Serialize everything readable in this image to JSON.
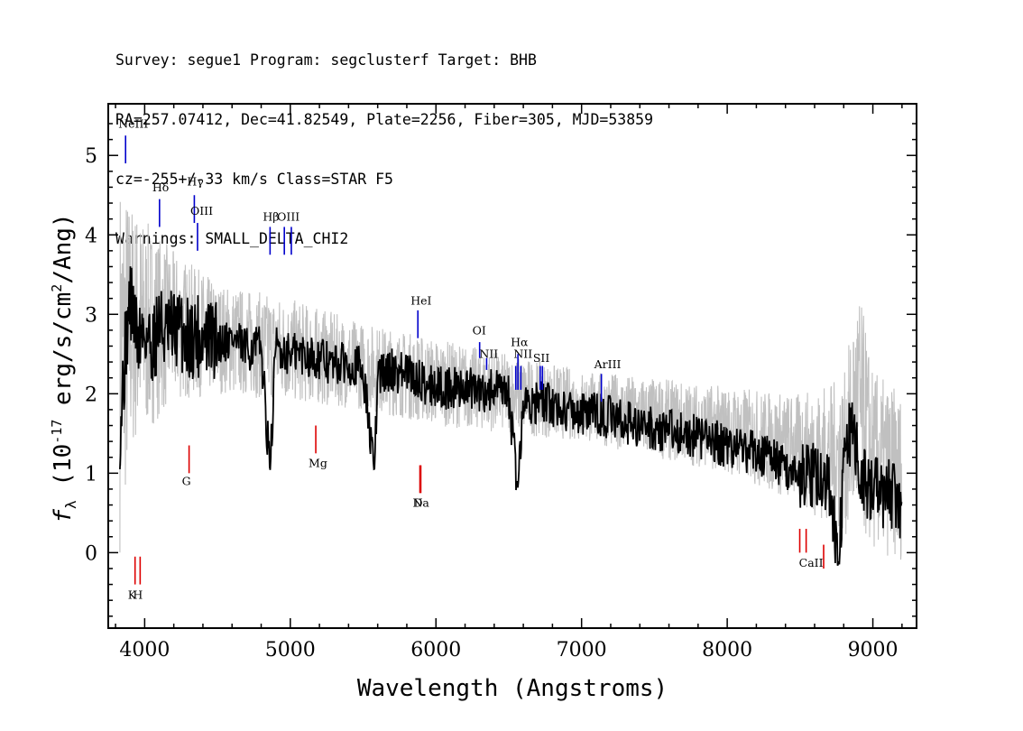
{
  "header": {
    "line1": "Survey: segue1 Program: segclusterf Target: BHB",
    "line2": "RA=257.07412, Dec=41.82549, Plate=2256, Fiber=305, MJD=53859",
    "line3": "cz=-255+/-33 km/s Class=STAR F5",
    "line4": "Warnings: SMALL_DELTA_CHI2"
  },
  "chart_data": {
    "type": "line",
    "xlabel": "Wavelength (Angstroms)",
    "ylabel": "f_λ (10^-17 erg/s/cm^2/Ang)",
    "xlim": [
      3750,
      9300
    ],
    "ylim": [
      -0.95,
      5.65
    ],
    "x_ticks": [
      4000,
      5000,
      6000,
      7000,
      8000,
      9000
    ],
    "y_ticks": [
      0,
      1,
      2,
      3,
      4,
      5
    ],
    "colors": {
      "smoothed": "#000000",
      "raw": "#c0c0c0",
      "emission": "#0000cc",
      "absorption": "#dd0000"
    },
    "series": [
      {
        "name": "",
        "role": "smoothed",
        "x": [
          3830,
          3870,
          3900,
          3950,
          4000,
          4050,
          4100,
          4150,
          4200,
          4250,
          4300,
          4350,
          4400,
          4500,
          4600,
          4700,
          4800,
          4861,
          4900,
          5000,
          5100,
          5200,
          5300,
          5400,
          5500,
          5577,
          5600,
          5700,
          5800,
          5900,
          6000,
          6100,
          6200,
          6300,
          6400,
          6500,
          6563,
          6600,
          6700,
          6800,
          6900,
          7000,
          7100,
          7200,
          7300,
          7400,
          7500,
          7600,
          7700,
          7800,
          7900,
          8000,
          8100,
          8200,
          8300,
          8400,
          8500,
          8600,
          8700,
          8760,
          8800,
          8850,
          8900,
          8950,
          9000,
          9050,
          9100,
          9150,
          9200
        ],
        "y": [
          1.6,
          2.6,
          3.2,
          2.7,
          2.8,
          2.6,
          2.9,
          2.7,
          2.8,
          2.8,
          2.7,
          2.75,
          2.7,
          2.65,
          2.7,
          2.55,
          2.6,
          1.0,
          2.6,
          2.5,
          2.5,
          2.45,
          2.35,
          2.4,
          2.3,
          1.0,
          2.25,
          2.3,
          2.25,
          2.15,
          2.1,
          2.05,
          2.1,
          2.0,
          2.05,
          1.95,
          0.8,
          1.9,
          1.9,
          1.85,
          1.8,
          1.75,
          1.75,
          1.7,
          1.65,
          1.6,
          1.55,
          1.55,
          1.5,
          1.45,
          1.4,
          1.35,
          1.3,
          1.25,
          1.2,
          1.05,
          1.0,
          0.95,
          0.9,
          -0.2,
          1.0,
          1.6,
          1.1,
          0.9,
          0.8,
          0.75,
          0.75,
          0.65,
          0.4
        ]
      },
      {
        "name": "",
        "role": "raw-noise-envelope",
        "x": [
          3830,
          3900,
          4000,
          4200,
          4500,
          5000,
          5500,
          6000,
          6500,
          7000,
          7500,
          8000,
          8500,
          8800,
          8900,
          9000,
          9200
        ],
        "y_low": [
          0.0,
          1.2,
          1.5,
          1.9,
          2.0,
          1.9,
          1.8,
          1.6,
          1.5,
          1.4,
          1.2,
          1.0,
          0.6,
          0.2,
          0.3,
          0.0,
          -0.1
        ],
        "y_high": [
          4.8,
          4.5,
          4.2,
          3.8,
          3.4,
          3.2,
          2.9,
          2.7,
          2.5,
          2.3,
          2.2,
          2.1,
          2.0,
          2.2,
          3.4,
          2.3,
          2.0
        ]
      }
    ],
    "emission_lines": [
      {
        "label": "NeIII",
        "x": 3869,
        "y0": 4.9,
        "y1": 5.25,
        "label_y": 5.35
      },
      {
        "label": "Hδ",
        "x": 4102,
        "y0": 4.1,
        "y1": 4.45,
        "label_y": 4.55
      },
      {
        "label": "Hγ",
        "x": 4341,
        "y0": 4.15,
        "y1": 4.5,
        "label_y": 4.62
      },
      {
        "label": "OIII",
        "x": 4363,
        "y0": 3.8,
        "y1": 4.15,
        "label_y": 4.25
      },
      {
        "label": "Hβ",
        "x": 4861,
        "y0": 3.75,
        "y1": 4.1,
        "label_y": 4.18
      },
      {
        "label": "OIII",
        "x": 4959,
        "y0": 3.75,
        "y1": 4.1,
        "label_y": 4.18
      },
      {
        "label": "",
        "x": 5007,
        "y0": 3.75,
        "y1": 4.1,
        "label_y": 4.18
      },
      {
        "label": "HeI",
        "x": 5876,
        "y0": 2.7,
        "y1": 3.05,
        "label_y": 3.12
      },
      {
        "label": "OI",
        "x": 6300,
        "y0": 2.45,
        "y1": 2.65,
        "label_y": 2.75
      },
      {
        "label": "NII",
        "x": 6348,
        "y0": 2.3,
        "y1": 2.45,
        "label_y": 2.45
      },
      {
        "label": "Hα",
        "x": 6563,
        "y0": 2.05,
        "y1": 2.5,
        "label_y": 2.6
      },
      {
        "label": "",
        "x": 6548,
        "y0": 2.05,
        "y1": 2.35,
        "label_y": 2.45
      },
      {
        "label": "NII",
        "x": 6583,
        "y0": 2.05,
        "y1": 2.35,
        "label_y": 2.45
      },
      {
        "label": "SII",
        "x": 6716,
        "y0": 2.05,
        "y1": 2.35,
        "label_y": 2.4
      },
      {
        "label": "",
        "x": 6731,
        "y0": 2.05,
        "y1": 2.35,
        "label_y": 2.4
      },
      {
        "label": "ArIII",
        "x": 7136,
        "y0": 1.9,
        "y1": 2.25,
        "label_y": 2.32
      }
    ],
    "absorption_lines": [
      {
        "label": "K",
        "x": 3934,
        "y0": -0.4,
        "y1": -0.05,
        "label_y": -0.58
      },
      {
        "label": "H",
        "x": 3969,
        "y0": -0.4,
        "y1": -0.05,
        "label_y": -0.58
      },
      {
        "label": "G",
        "x": 4305,
        "y0": 1.0,
        "y1": 1.35,
        "label_y": 0.85
      },
      {
        "label": "Mg",
        "x": 5175,
        "y0": 1.25,
        "y1": 1.6,
        "label_y": 1.08
      },
      {
        "label": "Na",
        "x": 5890,
        "y0": 0.75,
        "y1": 1.1,
        "label_y": 0.58
      },
      {
        "label": "D",
        "x": 5896,
        "y0": 0.75,
        "y1": 1.1,
        "label_y": 0.58
      },
      {
        "label": "",
        "x": 8498,
        "y0": 0.0,
        "y1": 0.3,
        "label_y": -0.18
      },
      {
        "label": "CaII",
        "x": 8542,
        "y0": 0.0,
        "y1": 0.3,
        "label_y": -0.18
      },
      {
        "label": "",
        "x": 8662,
        "y0": -0.2,
        "y1": 0.1,
        "label_y": -0.18
      }
    ]
  }
}
